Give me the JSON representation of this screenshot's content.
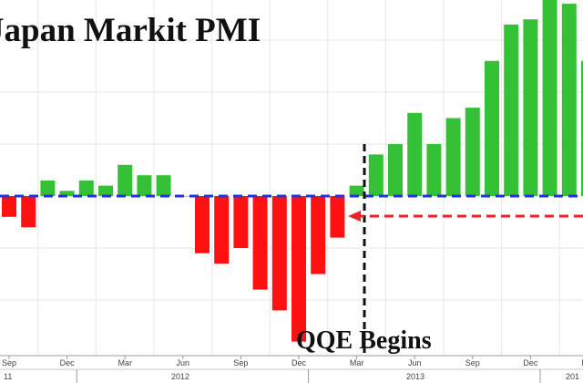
{
  "chart_data": {
    "type": "bar",
    "title": "Japan Markit PMI",
    "annotation": "QQE Begins",
    "baseline": 50,
    "ylim": [
      47.3,
      55.6
    ],
    "grid": true,
    "x_tick_labels": [
      "Sep",
      "Dec",
      "Mar",
      "Jun",
      "Sep",
      "Dec",
      "Mar",
      "Jun",
      "Sep",
      "Dec",
      "Mar"
    ],
    "year_labels": [
      "11",
      "2012",
      "2013",
      "201"
    ],
    "values": [
      49.6,
      49.4,
      50.3,
      50.1,
      50.3,
      50.2,
      50.6,
      50.4,
      50.4,
      50.0,
      48.9,
      48.7,
      49.0,
      48.2,
      47.8,
      47.2,
      48.5,
      49.2,
      50.2,
      50.8,
      51.0,
      51.6,
      51.0,
      51.5,
      51.7,
      52.6,
      53.3,
      53.4,
      54.7,
      53.7,
      52.6
    ],
    "colors": {
      "positive": "#35c135",
      "negative": "#ff1111",
      "baseline": "#2233dd",
      "arrow": "#ee2222",
      "grid": "#e7e7e7"
    }
  }
}
